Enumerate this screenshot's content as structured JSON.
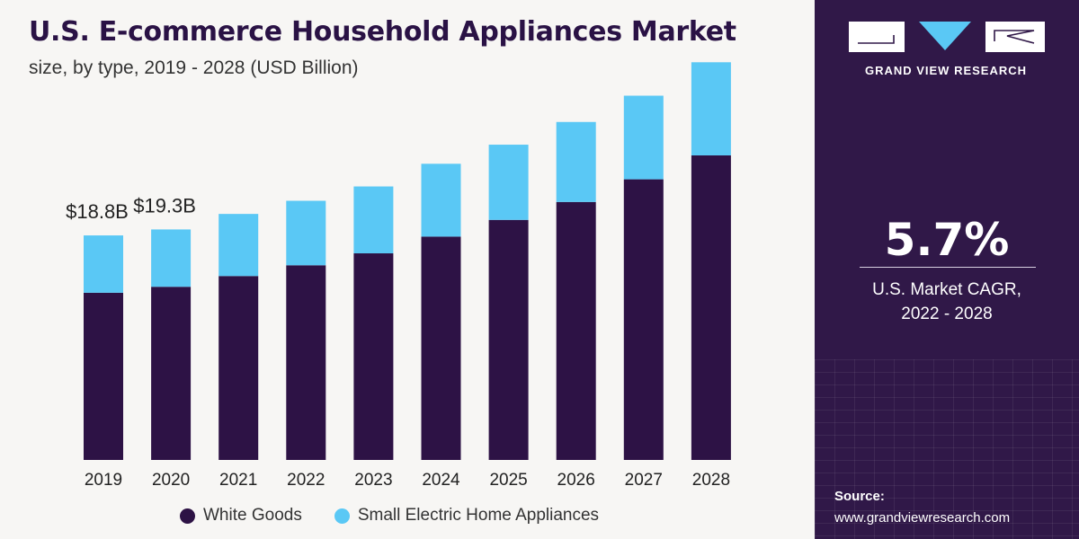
{
  "header": {
    "title": "U.S. E-commerce Household Appliances Market",
    "subtitle": "size, by type, 2019 - 2028 (USD Billion)"
  },
  "colors": {
    "white_goods": "#2d1245",
    "small_electric": "#5ac8f5",
    "panel": "#301848"
  },
  "chart_data": {
    "type": "bar",
    "stacked": true,
    "categories": [
      "2019",
      "2020",
      "2021",
      "2022",
      "2023",
      "2024",
      "2025",
      "2026",
      "2027",
      "2028"
    ],
    "series": [
      {
        "name": "White Goods",
        "values": [
          14.0,
          14.5,
          15.4,
          16.3,
          17.3,
          18.7,
          20.1,
          21.6,
          23.5,
          25.5
        ]
      },
      {
        "name": "Small Electric Home Appliances",
        "values": [
          4.8,
          4.8,
          5.2,
          5.4,
          5.6,
          6.1,
          6.3,
          6.7,
          7.0,
          7.8
        ]
      }
    ],
    "data_labels": [
      {
        "category": "2019",
        "text": "$18.8B"
      },
      {
        "category": "2020",
        "text": "$19.3B"
      }
    ],
    "ylim": [
      0,
      34
    ],
    "grid": false,
    "legend_position": "bottom"
  },
  "legend": {
    "items": [
      {
        "label": "White Goods",
        "color": "#2d1245"
      },
      {
        "label": "Small Electric Home Appliances",
        "color": "#5ac8f5"
      }
    ]
  },
  "sidebar": {
    "brand": "GRAND VIEW RESEARCH",
    "cagr_value": "5.7%",
    "cagr_label_line1": "U.S. Market CAGR,",
    "cagr_label_line2": "2022 - 2028",
    "source_label": "Source:",
    "source_url": "www.grandviewresearch.com"
  }
}
